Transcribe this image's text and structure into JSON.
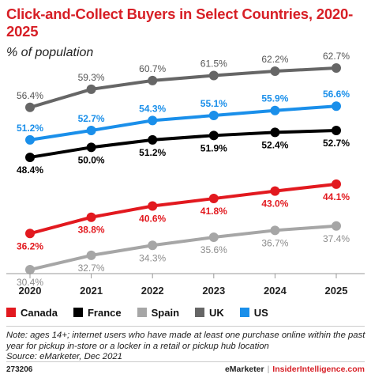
{
  "title": "Click-and-Collect Buyers in Select Countries, 2020-2025",
  "subtitle": "% of population",
  "note": "Note: ages 14+; internet users who have made at least one purchase online within the past year for pickup in-store or a locker in a retail or pickup hub location",
  "source": "Source: eMarketer, Dec 2021",
  "chart_id": "273206",
  "brand": {
    "emarketer": "eMarketer",
    "separator": "|",
    "insider": "InsiderIntelligence.com"
  },
  "chart_data": {
    "type": "line",
    "x": [
      "2020",
      "2021",
      "2022",
      "2023",
      "2024",
      "2025"
    ],
    "ylim": [
      28,
      66
    ],
    "grid": false,
    "legend_position": "bottom",
    "value_suffix": "%",
    "series": [
      {
        "name": "Canada",
        "color": "#e2191f",
        "values": [
          36.2,
          38.8,
          40.6,
          41.8,
          43.0,
          44.1
        ],
        "label_color": "#e2191f",
        "label_pos": [
          "below",
          "below",
          "below",
          "below",
          "below",
          "below"
        ]
      },
      {
        "name": "France",
        "color": "#000000",
        "values": [
          48.4,
          50.0,
          51.2,
          51.9,
          52.4,
          52.7
        ],
        "label_color": "#000000",
        "label_pos": [
          "below",
          "below",
          "below",
          "below",
          "below",
          "below"
        ]
      },
      {
        "name": "Spain",
        "color": "#a6a6a6",
        "values": [
          30.4,
          32.7,
          34.3,
          35.6,
          36.7,
          37.4
        ],
        "label_color": "#8c8c8c",
        "label_pos": [
          "below",
          "below",
          "below",
          "below",
          "below",
          "below"
        ]
      },
      {
        "name": "UK",
        "color": "#666666",
        "values": [
          56.4,
          59.3,
          60.7,
          61.5,
          62.2,
          62.7
        ],
        "label_color": "#555555",
        "label_pos": [
          "above",
          "above",
          "above",
          "above",
          "above",
          "above"
        ]
      },
      {
        "name": "US",
        "color": "#1a8fea",
        "values": [
          51.2,
          52.7,
          54.3,
          55.1,
          55.9,
          56.6
        ],
        "label_color": "#1a8fea",
        "label_pos": [
          "above",
          "above",
          "above",
          "above",
          "above",
          "above"
        ]
      }
    ]
  }
}
